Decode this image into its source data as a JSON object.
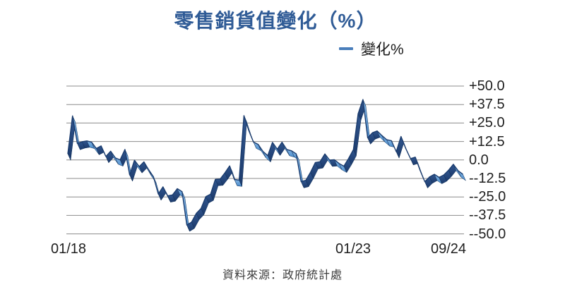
{
  "title": "零售銷貨值變化（%）",
  "legend": {
    "label": "變化%",
    "marker_color": "#4A7EBB"
  },
  "source": "資料來源：政府統計處",
  "colors": {
    "title": "#2F5B96",
    "grid": "#8C8C8C",
    "ribbon_light_top": "#85B6E4",
    "ribbon_light_bottom": "#4A8BCB",
    "ribbon_dark_top": "#31568F",
    "ribbon_dark_bottom": "#1C3A6B",
    "line_edge": "#1B3C6E",
    "facet_outline": "#0F2F58"
  },
  "y_axis": {
    "labels": [
      "+50.0",
      "+37.5",
      "+25.0",
      "+12.5",
      "0.0",
      "--12.5",
      "--25.0",
      "--37.5",
      "--50.0"
    ],
    "max": 50,
    "min": -50,
    "step": 12.5,
    "side": "right"
  },
  "x_axis": {
    "labels": [
      "01/18",
      "01/23",
      "09/24"
    ],
    "label_indices": [
      0,
      60,
      80
    ]
  },
  "chart_data": {
    "type": "line",
    "style": "3d-ribbon",
    "title": "零售銷貨值變化（%）",
    "xlabel": "",
    "ylabel": "變化%",
    "ylim": [
      -50,
      50
    ],
    "grid": true,
    "legend_position": "top-right",
    "x": [
      "01/18",
      "02/18",
      "03/18",
      "04/18",
      "05/18",
      "06/18",
      "07/18",
      "08/18",
      "09/18",
      "10/18",
      "11/18",
      "12/18",
      "01/19",
      "02/19",
      "03/19",
      "04/19",
      "05/19",
      "06/19",
      "07/19",
      "08/19",
      "09/19",
      "10/19",
      "11/19",
      "12/19",
      "01/20",
      "02/20",
      "03/20",
      "04/20",
      "05/20",
      "06/20",
      "07/20",
      "08/20",
      "09/20",
      "10/20",
      "11/20",
      "12/20",
      "01/21",
      "02/21",
      "03/21",
      "04/21",
      "05/21",
      "06/21",
      "07/21",
      "08/21",
      "09/21",
      "10/21",
      "11/21",
      "12/21",
      "01/22",
      "02/22",
      "03/22",
      "04/22",
      "05/22",
      "06/22",
      "07/22",
      "08/22",
      "09/22",
      "10/22",
      "11/22",
      "12/22",
      "01/23",
      "02/23",
      "03/23",
      "04/23",
      "05/23",
      "06/23",
      "07/23",
      "08/23",
      "09/23",
      "10/23",
      "11/23",
      "12/23",
      "01/24",
      "02/24",
      "03/24",
      "04/24",
      "05/24",
      "06/24",
      "07/24",
      "08/24",
      "09/24",
      "10/24",
      "11/24",
      "12/24"
    ],
    "series": [
      {
        "name": "變化%",
        "values": [
          4.1,
          29.8,
          11.2,
          12.3,
          12.9,
          12.0,
          7.8,
          9.5,
          2.4,
          5.9,
          1.4,
          0.1,
          7.1,
          -10.1,
          -0.2,
          -4.5,
          -1.3,
          -6.7,
          -11.4,
          -23.0,
          -18.2,
          -24.3,
          -23.6,
          -19.4,
          -21.4,
          -44.0,
          -42.1,
          -36.1,
          -32.8,
          -24.8,
          -23.1,
          -13.1,
          -12.9,
          -8.8,
          -4.0,
          -13.2,
          -13.6,
          30.0,
          20.1,
          12.1,
          10.5,
          5.8,
          2.9,
          11.9,
          7.3,
          12.0,
          7.1,
          6.2,
          4.1,
          -14.6,
          -13.8,
          -8.3,
          -1.7,
          -1.2,
          4.1,
          -0.1,
          0.2,
          -2.4,
          -4.2,
          1.1,
          7.0,
          31.3,
          40.9,
          15.0,
          18.4,
          19.6,
          16.5,
          13.7,
          13.0,
          5.6,
          15.9,
          7.8,
          0.9,
          1.9,
          -7.0,
          -14.7,
          -11.5,
          -9.7,
          -11.8,
          -10.1,
          -6.9,
          -2.9,
          -7.3,
          -9.7
        ]
      }
    ]
  }
}
